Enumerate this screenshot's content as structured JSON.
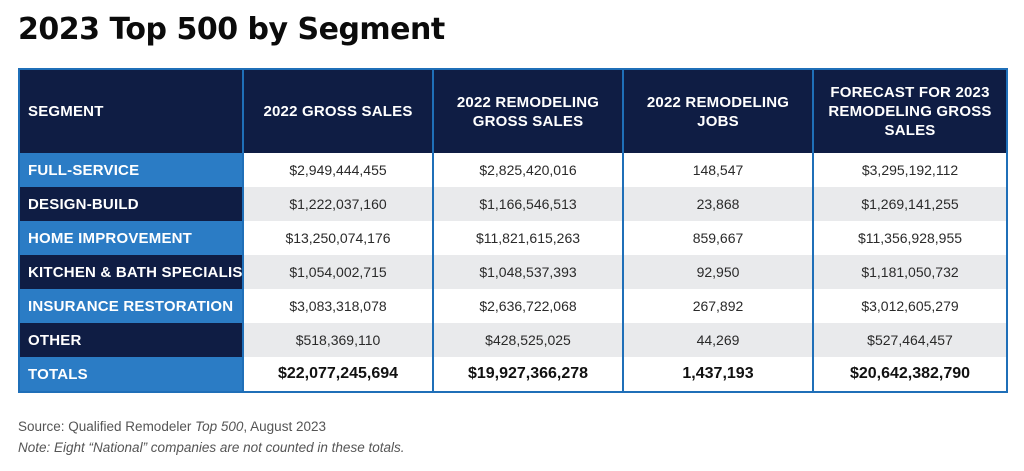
{
  "title": "2023 Top 500 by Segment",
  "chart_data": {
    "type": "table",
    "title": "2023 Top 500 by Segment",
    "columns": [
      "SEGMENT",
      "2022 GROSS SALES",
      "2022 REMODELING GROSS SALES",
      "2022 REMODELING JOBS",
      "FORECAST FOR 2023 REMODELING GROSS SALES"
    ],
    "rows": [
      [
        "FULL-SERVICE",
        "$2,949,444,455",
        "$2,825,420,016",
        "148,547",
        "$3,295,192,112"
      ],
      [
        "DESIGN-BUILD",
        "$1,222,037,160",
        "$1,166,546,513",
        "23,868",
        "$1,269,141,255"
      ],
      [
        "HOME IMPROVEMENT",
        "$13,250,074,176",
        "$11,821,615,263",
        "859,667",
        "$11,356,928,955"
      ],
      [
        "KITCHEN & BATH SPECIALIST",
        "$1,054,002,715",
        "$1,048,537,393",
        "92,950",
        "$1,181,050,732"
      ],
      [
        "INSURANCE RESTORATION",
        "$3,083,318,078",
        "$2,636,722,068",
        "267,892",
        "$3,012,605,279"
      ],
      [
        "OTHER",
        "$518,369,110",
        "$428,525,025",
        "44,269",
        "$527,464,457"
      ]
    ],
    "totals": [
      "TOTALS",
      "$22,077,245,694",
      "$19,927,366,278",
      "1,437,193",
      "$20,642,382,790"
    ]
  },
  "notes": {
    "source_prefix": "Source: Qualified Remodeler ",
    "source_italic": "Top 500",
    "source_suffix": ", August 2023",
    "note": "Note: Eight “National” companies are not counted in these totals."
  },
  "colors": {
    "navy": "#0f1d44",
    "blue": "#2b7cc5",
    "border": "#1f6fb8",
    "stripe": "#e9eaec"
  }
}
